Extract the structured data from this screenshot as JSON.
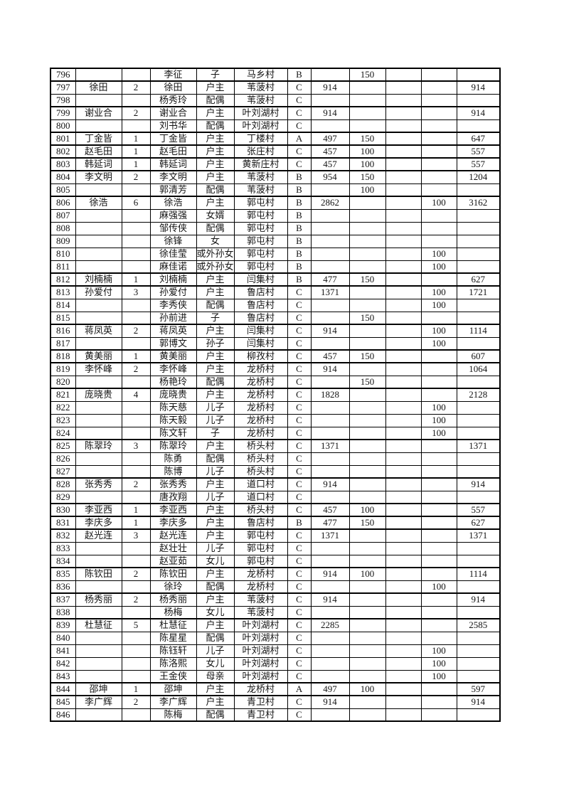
{
  "colors": {
    "text": "#141414",
    "highlight_name": "#ff0000",
    "grid_line": "#000000",
    "page_background": "#ffffff"
  },
  "table": {
    "columns": [
      "row-no",
      "household-head",
      "member-count",
      "member-name",
      "relation",
      "village",
      "category",
      "base-amount",
      "addition-a",
      "blank",
      "addition-b",
      "total"
    ],
    "rows": [
      {
        "cells": [
          "796",
          "",
          "",
          "李征",
          "子",
          "马乡村",
          "B",
          "",
          "150",
          "",
          "",
          ""
        ],
        "head": false,
        "red": false
      },
      {
        "cells": [
          "797",
          "徐田",
          "2",
          "徐田",
          "户主",
          "苇菠村",
          "C",
          "914",
          "",
          "",
          "",
          "914"
        ],
        "head": true,
        "red": false
      },
      {
        "cells": [
          "798",
          "",
          "",
          "杨秀玲",
          "配偶",
          "苇菠村",
          "C",
          "",
          "",
          "",
          "",
          ""
        ],
        "head": false,
        "red": false
      },
      {
        "cells": [
          "799",
          "谢业合",
          "2",
          "谢业合",
          "户主",
          "叶刘湖村",
          "C",
          "914",
          "",
          "",
          "",
          "914"
        ],
        "head": true,
        "red": false
      },
      {
        "cells": [
          "800",
          "",
          "",
          "刘书华",
          "配偶",
          "叶刘湖村",
          "C",
          "",
          "",
          "",
          "",
          ""
        ],
        "head": false,
        "red": false
      },
      {
        "cells": [
          "801",
          "丁金皆",
          "1",
          "丁金皆",
          "户主",
          "丁楼村",
          "A",
          "497",
          "150",
          "",
          "",
          "647"
        ],
        "head": true,
        "red": false
      },
      {
        "cells": [
          "802",
          "赵毛田",
          "1",
          "赵毛田",
          "户主",
          "张庄村",
          "C",
          "457",
          "100",
          "",
          "",
          "557"
        ],
        "head": true,
        "red": false
      },
      {
        "cells": [
          "803",
          "韩延词",
          "1",
          "韩延词",
          "户主",
          "黄新庄村",
          "C",
          "457",
          "100",
          "",
          "",
          "557"
        ],
        "head": true,
        "red": false
      },
      {
        "cells": [
          "804",
          "李文明",
          "2",
          "李文明",
          "户主",
          "苇菠村",
          "B",
          "954",
          "150",
          "",
          "",
          "1204"
        ],
        "head": true,
        "red": false
      },
      {
        "cells": [
          "805",
          "",
          "",
          "郭清芳",
          "配偶",
          "苇菠村",
          "B",
          "",
          "100",
          "",
          "",
          ""
        ],
        "head": false,
        "red": false
      },
      {
        "cells": [
          "806",
          "徐浩",
          "6",
          "徐浩",
          "户主",
          "郭屯村",
          "B",
          "2862",
          "",
          "",
          "100",
          "3162"
        ],
        "head": true,
        "red": true
      },
      {
        "cells": [
          "807",
          "",
          "",
          "麻强强",
          "女婿",
          "郭屯村",
          "B",
          "",
          "",
          "",
          "",
          ""
        ],
        "head": false,
        "red": false
      },
      {
        "cells": [
          "808",
          "",
          "",
          "邹传侠",
          "配偶",
          "郭屯村",
          "B",
          "",
          "",
          "",
          "",
          ""
        ],
        "head": false,
        "red": false
      },
      {
        "cells": [
          "809",
          "",
          "",
          "徐锋",
          "女",
          "郭屯村",
          "B",
          "",
          "",
          "",
          "",
          ""
        ],
        "head": false,
        "red": false
      },
      {
        "cells": [
          "810",
          "",
          "",
          "徐佳莹",
          "或外孙女",
          "郭屯村",
          "B",
          "",
          "",
          "",
          "100",
          ""
        ],
        "head": false,
        "red": false
      },
      {
        "cells": [
          "811",
          "",
          "",
          "麻佳诺",
          "或外孙女",
          "郭屯村",
          "B",
          "",
          "",
          "",
          "100",
          ""
        ],
        "head": false,
        "red": false
      },
      {
        "cells": [
          "812",
          "刘楠楠",
          "1",
          "刘楠楠",
          "户主",
          "闫集村",
          "B",
          "477",
          "150",
          "",
          "",
          "627"
        ],
        "head": true,
        "red": false
      },
      {
        "cells": [
          "813",
          "孙爱付",
          "3",
          "孙爱付",
          "户主",
          "鲁店村",
          "C",
          "1371",
          "",
          "",
          "100",
          "1721"
        ],
        "head": true,
        "red": false
      },
      {
        "cells": [
          "814",
          "",
          "",
          "李秀侠",
          "配偶",
          "鲁店村",
          "C",
          "",
          "",
          "",
          "100",
          ""
        ],
        "head": false,
        "red": false
      },
      {
        "cells": [
          "815",
          "",
          "",
          "孙前进",
          "子",
          "鲁店村",
          "C",
          "",
          "150",
          "",
          "",
          ""
        ],
        "head": false,
        "red": false
      },
      {
        "cells": [
          "816",
          "蒋凤英",
          "2",
          "蒋凤英",
          "户主",
          "闫集村",
          "C",
          "914",
          "",
          "",
          "100",
          "1114"
        ],
        "head": true,
        "red": false
      },
      {
        "cells": [
          "817",
          "",
          "",
          "郭博文",
          "孙子",
          "闫集村",
          "C",
          "",
          "",
          "",
          "100",
          ""
        ],
        "head": false,
        "red": false
      },
      {
        "cells": [
          "818",
          "黄美丽",
          "1",
          "黄美丽",
          "户主",
          "柳孜村",
          "C",
          "457",
          "150",
          "",
          "",
          "607"
        ],
        "head": true,
        "red": false
      },
      {
        "cells": [
          "819",
          "李怀峰",
          "2",
          "李怀峰",
          "户主",
          "龙桥村",
          "C",
          "914",
          "",
          "",
          "",
          "1064"
        ],
        "head": true,
        "red": false
      },
      {
        "cells": [
          "820",
          "",
          "",
          "杨艳玲",
          "配偶",
          "龙桥村",
          "C",
          "",
          "150",
          "",
          "",
          ""
        ],
        "head": false,
        "red": false
      },
      {
        "cells": [
          "821",
          "庞晓贵",
          "4",
          "庞晓贵",
          "户主",
          "龙桥村",
          "C",
          "1828",
          "",
          "",
          "",
          "2128"
        ],
        "head": true,
        "red": false
      },
      {
        "cells": [
          "822",
          "",
          "",
          "陈天慈",
          "儿子",
          "龙桥村",
          "C",
          "",
          "",
          "",
          "100",
          ""
        ],
        "head": false,
        "red": false
      },
      {
        "cells": [
          "823",
          "",
          "",
          "陈天毅",
          "儿子",
          "龙桥村",
          "C",
          "",
          "",
          "",
          "100",
          ""
        ],
        "head": false,
        "red": false
      },
      {
        "cells": [
          "824",
          "",
          "",
          "陈文轩",
          "子",
          "龙桥村",
          "C",
          "",
          "",
          "",
          "100",
          ""
        ],
        "head": false,
        "red": false
      },
      {
        "cells": [
          "825",
          "陈翠玲",
          "3",
          "陈翠玲",
          "户主",
          "桥头村",
          "C",
          "1371",
          "",
          "",
          "",
          "1371"
        ],
        "head": true,
        "red": false
      },
      {
        "cells": [
          "826",
          "",
          "",
          "陈勇",
          "配偶",
          "桥头村",
          "C",
          "",
          "",
          "",
          "",
          ""
        ],
        "head": false,
        "red": false
      },
      {
        "cells": [
          "827",
          "",
          "",
          "陈博",
          "儿子",
          "桥头村",
          "C",
          "",
          "",
          "",
          "",
          ""
        ],
        "head": false,
        "red": false
      },
      {
        "cells": [
          "828",
          "张秀秀",
          "2",
          "张秀秀",
          "户主",
          "道口村",
          "C",
          "914",
          "",
          "",
          "",
          "914"
        ],
        "head": true,
        "red": false
      },
      {
        "cells": [
          "829",
          "",
          "",
          "唐孜翔",
          "儿子",
          "道口村",
          "C",
          "",
          "",
          "",
          "",
          ""
        ],
        "head": false,
        "red": false
      },
      {
        "cells": [
          "830",
          "李亚西",
          "1",
          "李亚西",
          "户主",
          "桥头村",
          "C",
          "457",
          "100",
          "",
          "",
          "557"
        ],
        "head": true,
        "red": false
      },
      {
        "cells": [
          "831",
          "李庆多",
          "1",
          "李庆多",
          "户主",
          "鲁店村",
          "B",
          "477",
          "150",
          "",
          "",
          "627"
        ],
        "head": true,
        "red": false
      },
      {
        "cells": [
          "832",
          "赵光连",
          "3",
          "赵光连",
          "户主",
          "郭屯村",
          "C",
          "1371",
          "",
          "",
          "",
          "1371"
        ],
        "head": true,
        "red": false
      },
      {
        "cells": [
          "833",
          "",
          "",
          "赵壮壮",
          "儿子",
          "郭屯村",
          "C",
          "",
          "",
          "",
          "",
          ""
        ],
        "head": false,
        "red": false
      },
      {
        "cells": [
          "834",
          "",
          "",
          "赵亚茹",
          "女儿",
          "郭屯村",
          "C",
          "",
          "",
          "",
          "",
          ""
        ],
        "head": false,
        "red": false
      },
      {
        "cells": [
          "835",
          "陈钦田",
          "2",
          "陈钦田",
          "户主",
          "龙桥村",
          "C",
          "914",
          "100",
          "",
          "",
          "1114"
        ],
        "head": true,
        "red": false
      },
      {
        "cells": [
          "836",
          "",
          "",
          "徐玲",
          "配偶",
          "龙桥村",
          "C",
          "",
          "",
          "",
          "100",
          ""
        ],
        "head": false,
        "red": true
      },
      {
        "cells": [
          "837",
          "杨秀丽",
          "2",
          "杨秀丽",
          "户主",
          "苇菠村",
          "C",
          "914",
          "",
          "",
          "",
          "914"
        ],
        "head": true,
        "red": false
      },
      {
        "cells": [
          "838",
          "",
          "",
          "杨梅",
          "女儿",
          "苇菠村",
          "C",
          "",
          "",
          "",
          "",
          ""
        ],
        "head": false,
        "red": false
      },
      {
        "cells": [
          "839",
          "杜慧征",
          "5",
          "杜慧征",
          "户主",
          "叶刘湖村",
          "C",
          "2285",
          "",
          "",
          "",
          "2585"
        ],
        "head": true,
        "red": false
      },
      {
        "cells": [
          "840",
          "",
          "",
          "陈星星",
          "配偶",
          "叶刘湖村",
          "C",
          "",
          "",
          "",
          "",
          ""
        ],
        "head": false,
        "red": false
      },
      {
        "cells": [
          "841",
          "",
          "",
          "陈钰轩",
          "儿子",
          "叶刘湖村",
          "C",
          "",
          "",
          "",
          "100",
          ""
        ],
        "head": false,
        "red": false
      },
      {
        "cells": [
          "842",
          "",
          "",
          "陈洛熙",
          "女儿",
          "叶刘湖村",
          "C",
          "",
          "",
          "",
          "100",
          ""
        ],
        "head": false,
        "red": false
      },
      {
        "cells": [
          "843",
          "",
          "",
          "王金侠",
          "母亲",
          "叶刘湖村",
          "C",
          "",
          "",
          "",
          "100",
          ""
        ],
        "head": false,
        "red": false
      },
      {
        "cells": [
          "844",
          "邵坤",
          "1",
          "邵坤",
          "户主",
          "龙桥村",
          "A",
          "497",
          "100",
          "",
          "",
          "597"
        ],
        "head": true,
        "red": true
      },
      {
        "cells": [
          "845",
          "李广辉",
          "2",
          "李广辉",
          "户主",
          "青卫村",
          "C",
          "914",
          "",
          "",
          "",
          "914"
        ],
        "head": true,
        "red": false
      },
      {
        "cells": [
          "846",
          "",
          "",
          "陈梅",
          "配偶",
          "青卫村",
          "C",
          "",
          "",
          "",
          "",
          ""
        ],
        "head": false,
        "red": false
      }
    ]
  }
}
